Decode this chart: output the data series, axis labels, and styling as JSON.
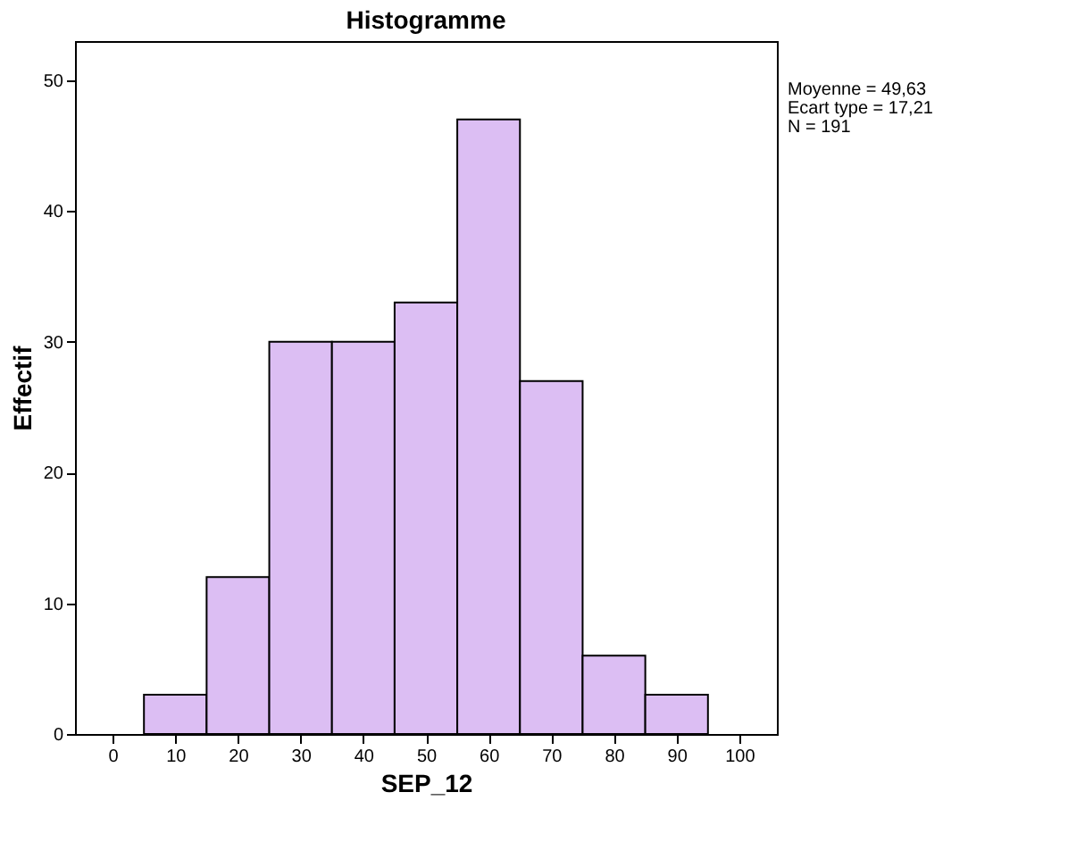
{
  "chart_data": {
    "type": "histogram",
    "title": "Histogramme",
    "xlabel": "SEP_12",
    "ylabel": "Effectif",
    "bins": [
      5,
      15,
      25,
      35,
      45,
      55,
      65,
      75,
      85,
      95
    ],
    "values": [
      3,
      12,
      30,
      30,
      33,
      47,
      27,
      6,
      3
    ],
    "color": "#dcbef3",
    "xlim": [
      -6,
      106
    ],
    "xticks": [
      0,
      10,
      20,
      30,
      40,
      50,
      60,
      70,
      80,
      90,
      100
    ],
    "ylim": [
      0,
      53
    ],
    "yticks": [
      0,
      10,
      20,
      30,
      40,
      50
    ],
    "grid": false,
    "annotations": [
      "Moyenne = 49,63",
      "Ecart type = 17,21",
      "N = 191"
    ]
  }
}
